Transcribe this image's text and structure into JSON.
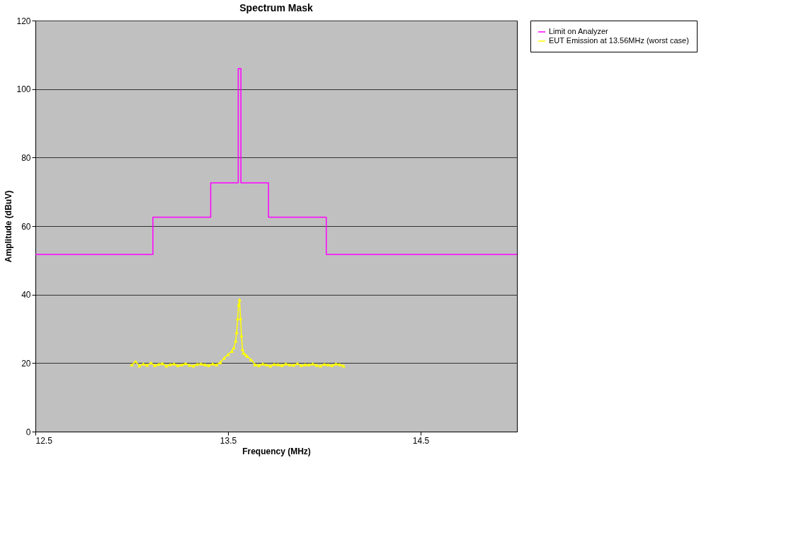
{
  "chart_data": {
    "type": "line",
    "title": "Spectrum Mask",
    "xlabel": "Frequency (MHz)",
    "ylabel": "Amplitude (dBuV)",
    "xlim": [
      12.5,
      15.0
    ],
    "xticks": [
      12.5,
      13.5,
      14.5
    ],
    "ylim": [
      0,
      120
    ],
    "yticks": [
      0,
      20,
      40,
      60,
      80,
      100,
      120
    ],
    "grid": "y",
    "legend": "right",
    "series": [
      {
        "name": "Limit on Analyzer",
        "type": "step",
        "color": "#ff00ff",
        "marker": "none",
        "x": [
          12.5,
          13.11,
          13.41,
          13.553,
          13.567,
          13.71,
          14.01,
          15.0
        ],
        "values": [
          51.7,
          62.6,
          72.6,
          106,
          72.6,
          62.6,
          51.7,
          51.7
        ]
      },
      {
        "name": "EUT Emission at 13.56MHz (worst case)",
        "type": "line",
        "color": "#ffff00",
        "marker": "triangle",
        "x": [
          13.0,
          13.02,
          13.04,
          13.06,
          13.08,
          13.1,
          13.12,
          13.14,
          13.16,
          13.18,
          13.2,
          13.22,
          13.24,
          13.26,
          13.28,
          13.3,
          13.32,
          13.34,
          13.36,
          13.38,
          13.4,
          13.42,
          13.44,
          13.46,
          13.48,
          13.5,
          13.52,
          13.53,
          13.54,
          13.545,
          13.55,
          13.555,
          13.56,
          13.565,
          13.57,
          13.575,
          13.58,
          13.59,
          13.6,
          13.62,
          13.64,
          13.66,
          13.68,
          13.7,
          13.72,
          13.74,
          13.76,
          13.78,
          13.8,
          13.82,
          13.84,
          13.86,
          13.88,
          13.9,
          13.92,
          13.94,
          13.96,
          13.98,
          14.0,
          14.02,
          14.04,
          14.06,
          14.08,
          14.1
        ],
        "values": [
          19.5,
          20.5,
          19.2,
          19.8,
          19.4,
          20.1,
          19.3,
          19.7,
          19.9,
          19.2,
          19.6,
          19.8,
          19.3,
          19.5,
          19.9,
          19.4,
          19.2,
          19.7,
          19.8,
          19.6,
          19.3,
          19.8,
          19.5,
          20.2,
          21.5,
          22.5,
          23.5,
          24.5,
          26.5,
          29,
          33,
          37,
          38.5,
          33,
          28,
          24,
          23,
          22.5,
          22,
          21,
          19.6,
          19.3,
          19.8,
          19.5,
          19.2,
          19.7,
          19.6,
          19.3,
          19.8,
          19.5,
          19.4,
          19.9,
          19.3,
          19.6,
          19.5,
          19.8,
          19.4,
          19.2,
          19.7,
          19.5,
          19.3,
          19.8,
          19.6,
          19.2
        ]
      }
    ]
  }
}
